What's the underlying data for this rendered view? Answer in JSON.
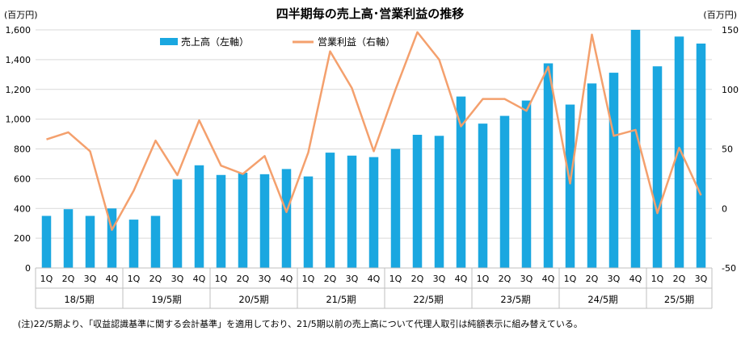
{
  "note": "(注)22/5期より、「収益認識基準に関する会計基準」を適用しており、21/5期以前の売上高について代理人取引は純額表示に組み替えている。",
  "chart_data": {
    "type": "bar",
    "title": "四半期毎の売上高･営業利益の推移",
    "left_unit": "(百万円)",
    "right_unit": "(百万円)",
    "quarters": [
      "1Q",
      "2Q",
      "3Q",
      "4Q",
      "1Q",
      "2Q",
      "3Q",
      "4Q",
      "1Q",
      "2Q",
      "3Q",
      "4Q",
      "1Q",
      "2Q",
      "3Q",
      "4Q",
      "1Q",
      "2Q",
      "3Q",
      "4Q",
      "1Q",
      "2Q",
      "3Q",
      "4Q",
      "1Q",
      "2Q",
      "3Q",
      "4Q",
      "1Q",
      "2Q",
      "3Q"
    ],
    "periods": [
      {
        "label": "18/5期",
        "count": 4
      },
      {
        "label": "19/5期",
        "count": 4
      },
      {
        "label": "20/5期",
        "count": 4
      },
      {
        "label": "21/5期",
        "count": 4
      },
      {
        "label": "22/5期",
        "count": 4
      },
      {
        "label": "23/5期",
        "count": 4
      },
      {
        "label": "24/5期",
        "count": 4
      },
      {
        "label": "25/5期",
        "count": 3
      }
    ],
    "y_left": {
      "min": 0,
      "max": 1600,
      "step": 200
    },
    "y_right": {
      "min": -50,
      "max": 150,
      "step": 50
    },
    "series": [
      {
        "name": "売上高（左軸）",
        "type": "bar",
        "axis": "left",
        "color": "#1aa7e0",
        "values": [
          350,
          395,
          350,
          400,
          325,
          350,
          595,
          690,
          625,
          640,
          630,
          665,
          615,
          775,
          755,
          745,
          800,
          895,
          888,
          1152,
          970,
          1022,
          1125,
          1375,
          1098,
          1240,
          1312,
          1600,
          1355,
          1555,
          1508
        ]
      },
      {
        "name": "営業利益（右軸）",
        "type": "line",
        "axis": "right",
        "color": "#f4a06d",
        "values": [
          58,
          64,
          48,
          -18,
          15,
          57,
          28,
          74,
          36,
          29,
          44,
          -3,
          47,
          132,
          101,
          48,
          100,
          148,
          125,
          69,
          92,
          92,
          82,
          119,
          21,
          146,
          61,
          66,
          -4,
          51,
          11
        ]
      }
    ],
    "legend_position": "top"
  }
}
